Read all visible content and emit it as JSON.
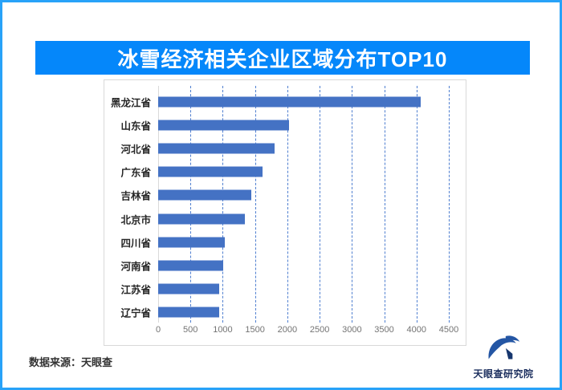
{
  "title": "冰雪经济相关企业区域分布TOP10",
  "source": "数据来源：天眼查",
  "brand": "天眼查研究院",
  "colors": {
    "page_border": "#28a2f8",
    "banner_bg": "#0587fa",
    "banner_text": "#ffffff",
    "bar": "#4472c4",
    "gridline": "#4f7fd0",
    "axis_line": "#d9d9d9",
    "category_text": "#262626",
    "tick_text": "#737373",
    "brand_blue": "#2456a4",
    "brand_dark_blue": "#16366e"
  },
  "icons": {
    "brand_logo": "tianyancha-eye-logo-icon"
  },
  "chart_data": {
    "type": "bar",
    "orientation": "horizontal",
    "title": "冰雪经济相关企业区域分布TOP10",
    "categories": [
      "黑龙江省",
      "山东省",
      "河北省",
      "广东省",
      "吉林省",
      "北京市",
      "四川省",
      "河南省",
      "江苏省",
      "辽宁省"
    ],
    "values": [
      4070,
      2030,
      1800,
      1610,
      1440,
      1340,
      1030,
      1010,
      945,
      940
    ],
    "xlabel": "",
    "ylabel": "",
    "xlim": [
      0,
      4500
    ],
    "xticks": [
      0,
      500,
      1000,
      1500,
      2000,
      2500,
      3000,
      3500,
      4000,
      4500
    ],
    "grid": "vertical-dashed",
    "legend": "none"
  }
}
